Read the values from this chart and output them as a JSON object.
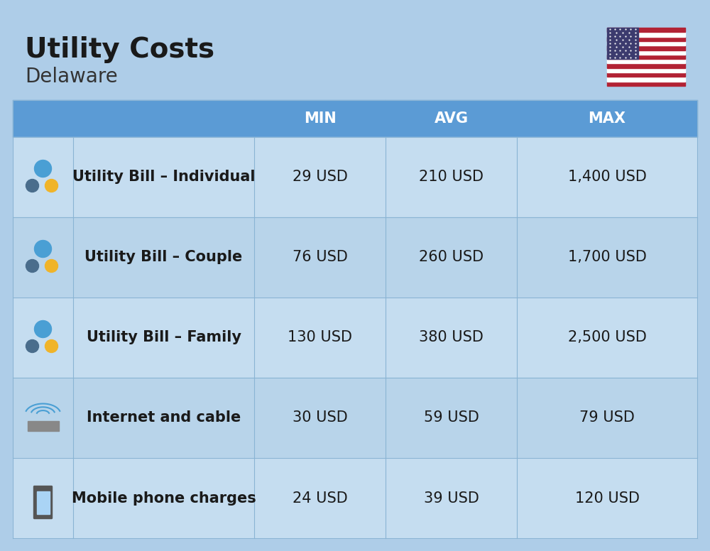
{
  "title": "Utility Costs",
  "subtitle": "Delaware",
  "background_color": "#aecde8",
  "header_bg_color": "#5b9bd5",
  "header_text_color": "#ffffff",
  "row_bg_color_1": "#c5ddf0",
  "row_bg_color_2": "#b8d4ea",
  "col_header_labels": [
    "MIN",
    "AVG",
    "MAX"
  ],
  "rows": [
    {
      "label": "Utility Bill – Individual",
      "min": "29 USD",
      "avg": "210 USD",
      "max": "1,400 USD",
      "icon": "utility"
    },
    {
      "label": "Utility Bill – Couple",
      "min": "76 USD",
      "avg": "260 USD",
      "max": "1,700 USD",
      "icon": "utility"
    },
    {
      "label": "Utility Bill – Family",
      "min": "130 USD",
      "avg": "380 USD",
      "max": "2,500 USD",
      "icon": "utility"
    },
    {
      "label": "Internet and cable",
      "min": "30 USD",
      "avg": "59 USD",
      "max": "79 USD",
      "icon": "internet"
    },
    {
      "label": "Mobile phone charges",
      "min": "24 USD",
      "avg": "39 USD",
      "max": "120 USD",
      "icon": "mobile"
    }
  ],
  "title_fontsize": 28,
  "subtitle_fontsize": 20,
  "header_fontsize": 15,
  "cell_fontsize": 15,
  "label_fontsize": 15
}
